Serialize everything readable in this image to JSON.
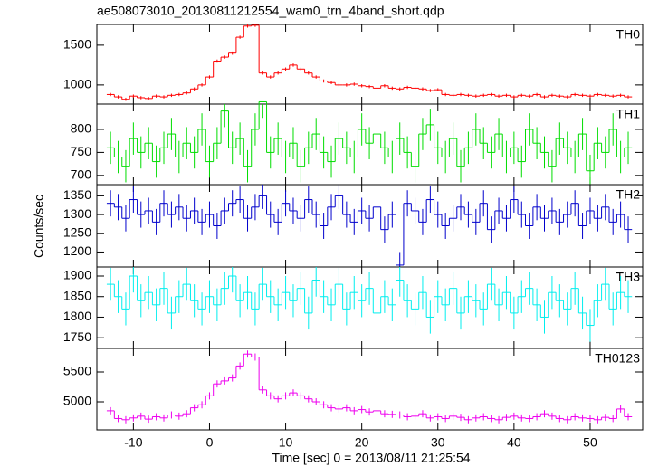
{
  "chart_data": [
    {
      "type": "step",
      "title": "ae508073010_20130811212554_wam0_trn_4band_short.qdp",
      "x": [
        -13,
        -12,
        -11,
        -10,
        -9,
        -8,
        -7,
        -6,
        -5,
        -4,
        -3,
        -2,
        -1,
        0,
        1,
        2,
        3,
        4,
        5,
        6,
        7,
        8,
        9,
        10,
        11,
        12,
        13,
        14,
        15,
        16,
        17,
        18,
        19,
        20,
        21,
        22,
        23,
        24,
        25,
        26,
        27,
        28,
        29,
        30,
        31,
        32,
        33,
        34,
        35,
        36,
        37,
        38,
        39,
        40,
        41,
        42,
        43,
        44,
        45,
        46,
        47,
        48,
        49,
        50,
        51,
        52,
        53,
        54,
        55
      ],
      "xlim": [
        -14.8,
        56.9
      ],
      "xticks": [
        -10,
        0,
        10,
        20,
        30,
        40,
        50
      ],
      "ylim": [
        760,
        1760
      ],
      "yticks": [
        1000,
        1500
      ],
      "series": [
        {
          "name": "TH0",
          "color": "#ff0000",
          "error": 20,
          "values": [
            880,
            850,
            820,
            860,
            840,
            830,
            860,
            850,
            870,
            880,
            900,
            950,
            1000,
            1100,
            1300,
            1350,
            1400,
            1600,
            1740,
            1750,
            1150,
            1100,
            1150,
            1200,
            1250,
            1200,
            1150,
            1100,
            1050,
            1030,
            1000,
            1000,
            1010,
            990,
            980,
            960,
            990,
            960,
            950,
            970,
            960,
            950,
            930,
            940,
            880,
            870,
            880,
            870,
            860,
            870,
            880,
            860,
            870,
            850,
            870,
            860,
            880,
            850,
            870,
            860,
            850,
            880,
            870,
            860,
            880,
            870,
            860,
            870,
            850
          ]
        }
      ]
    },
    {
      "type": "step",
      "x": [
        -13,
        -12,
        -11,
        -10,
        -9,
        -8,
        -7,
        -6,
        -5,
        -4,
        -3,
        -2,
        -1,
        0,
        1,
        2,
        3,
        4,
        5,
        6,
        7,
        8,
        9,
        10,
        11,
        12,
        13,
        14,
        15,
        16,
        17,
        18,
        19,
        20,
        21,
        22,
        23,
        24,
        25,
        26,
        27,
        28,
        29,
        30,
        31,
        32,
        33,
        34,
        35,
        36,
        37,
        38,
        39,
        40,
        41,
        42,
        43,
        44,
        45,
        46,
        47,
        48,
        49,
        50,
        51,
        52,
        53,
        54,
        55
      ],
      "xlim": [
        -14.8,
        56.9
      ],
      "xticks": [
        -10,
        0,
        10,
        20,
        30,
        40,
        50
      ],
      "ylim": [
        680,
        855
      ],
      "yticks": [
        700,
        750,
        800
      ],
      "series": [
        {
          "name": "TH1",
          "color": "#00dd00",
          "error": 35,
          "values": [
            760,
            740,
            720,
            780,
            750,
            770,
            730,
            760,
            790,
            740,
            770,
            750,
            800,
            730,
            770,
            840,
            760,
            780,
            720,
            800,
            860,
            750,
            780,
            740,
            770,
            720,
            760,
            790,
            750,
            730,
            780,
            760,
            740,
            800,
            770,
            790,
            760,
            740,
            780,
            750,
            720,
            790,
            810,
            760,
            740,
            780,
            720,
            760,
            800,
            770,
            750,
            790,
            740,
            760,
            730,
            800,
            770,
            750,
            720,
            780,
            760,
            740,
            790,
            710,
            770,
            750,
            800,
            740,
            760
          ]
        }
      ]
    },
    {
      "type": "step",
      "ylabel": "Counts/sec",
      "x": [
        -13,
        -12,
        -11,
        -10,
        -9,
        -8,
        -7,
        -6,
        -5,
        -4,
        -3,
        -2,
        -1,
        0,
        1,
        2,
        3,
        4,
        5,
        6,
        7,
        8,
        9,
        10,
        11,
        12,
        13,
        14,
        15,
        16,
        17,
        18,
        19,
        20,
        21,
        22,
        23,
        24,
        25,
        26,
        27,
        28,
        29,
        30,
        31,
        32,
        33,
        34,
        35,
        36,
        37,
        38,
        39,
        40,
        41,
        42,
        43,
        44,
        45,
        46,
        47,
        48,
        49,
        50,
        51,
        52,
        53,
        54,
        55
      ],
      "xlim": [
        -14.8,
        56.9
      ],
      "xticks": [
        -10,
        0,
        10,
        20,
        30,
        40,
        50
      ],
      "ylim": [
        1160,
        1380
      ],
      "yticks": [
        1200,
        1250,
        1300,
        1350
      ],
      "series": [
        {
          "name": "TH2",
          "color": "#0000cc",
          "error": 35,
          "values": [
            1330,
            1320,
            1290,
            1340,
            1300,
            1310,
            1280,
            1330,
            1300,
            1320,
            1290,
            1310,
            1280,
            1300,
            1270,
            1310,
            1330,
            1340,
            1290,
            1320,
            1350,
            1300,
            1280,
            1330,
            1310,
            1290,
            1340,
            1300,
            1270,
            1320,
            1350,
            1300,
            1280,
            1310,
            1290,
            1320,
            1260,
            1300,
            1165,
            1330,
            1310,
            1280,
            1340,
            1300,
            1270,
            1290,
            1320,
            1300,
            1280,
            1330,
            1260,
            1310,
            1290,
            1340,
            1300,
            1270,
            1320,
            1290,
            1310,
            1280,
            1300,
            1330,
            1270,
            1310,
            1290,
            1320,
            1280,
            1300,
            1260
          ]
        }
      ]
    },
    {
      "type": "step",
      "x": [
        -13,
        -12,
        -11,
        -10,
        -9,
        -8,
        -7,
        -6,
        -5,
        -4,
        -3,
        -2,
        -1,
        0,
        1,
        2,
        3,
        4,
        5,
        6,
        7,
        8,
        9,
        10,
        11,
        12,
        13,
        14,
        15,
        16,
        17,
        18,
        19,
        20,
        21,
        22,
        23,
        24,
        25,
        26,
        27,
        28,
        29,
        30,
        31,
        32,
        33,
        34,
        35,
        36,
        37,
        38,
        39,
        40,
        41,
        42,
        43,
        44,
        45,
        46,
        47,
        48,
        49,
        50,
        51,
        52,
        53,
        54,
        55
      ],
      "xlim": [
        -14.8,
        56.9
      ],
      "xticks": [
        -10,
        0,
        10,
        20,
        30,
        40,
        50
      ],
      "ylim": [
        1724,
        1922
      ],
      "yticks": [
        1750,
        1800,
        1850,
        1900
      ],
      "series": [
        {
          "name": "TH3",
          "color": "#00eeee",
          "error": 40,
          "values": [
            1880,
            1850,
            1820,
            1900,
            1840,
            1860,
            1830,
            1870,
            1810,
            1850,
            1880,
            1840,
            1820,
            1850,
            1830,
            1870,
            1900,
            1840,
            1860,
            1820,
            1880,
            1850,
            1830,
            1860,
            1840,
            1870,
            1810,
            1890,
            1850,
            1830,
            1880,
            1820,
            1860,
            1840,
            1870,
            1810,
            1850,
            1830,
            1890,
            1840,
            1820,
            1860,
            1800,
            1850,
            1830,
            1870,
            1810,
            1850,
            1840,
            1820,
            1880,
            1830,
            1860,
            1810,
            1850,
            1870,
            1830,
            1800,
            1860,
            1840,
            1820,
            1870,
            1810,
            1780,
            1840,
            1880,
            1820,
            1860,
            1850
          ]
        }
      ]
    },
    {
      "type": "step",
      "xlabel": "Time [sec] 0 = 2013/08/11 21:25:54",
      "x": [
        -13,
        -12,
        -11,
        -10,
        -9,
        -8,
        -7,
        -6,
        -5,
        -4,
        -3,
        -2,
        -1,
        0,
        1,
        2,
        3,
        4,
        5,
        6,
        7,
        8,
        9,
        10,
        11,
        12,
        13,
        14,
        15,
        16,
        17,
        18,
        19,
        20,
        21,
        22,
        23,
        24,
        25,
        26,
        27,
        28,
        29,
        30,
        31,
        32,
        33,
        34,
        35,
        36,
        37,
        38,
        39,
        40,
        41,
        42,
        43,
        44,
        45,
        46,
        47,
        48,
        49,
        50,
        51,
        52,
        53,
        54,
        55
      ],
      "xlim": [
        -14.8,
        56.9
      ],
      "xticks": [
        -10,
        0,
        10,
        20,
        30,
        40,
        50
      ],
      "ylim": [
        4530,
        5894
      ],
      "yticks": [
        5000,
        5500
      ],
      "series": [
        {
          "name": "TH0123",
          "color": "#ee00ee",
          "error": 60,
          "values": [
            4850,
            4720,
            4700,
            4730,
            4760,
            4710,
            4750,
            4730,
            4780,
            4760,
            4800,
            4900,
            4950,
            5100,
            5300,
            5350,
            5400,
            5600,
            5800,
            5750,
            5200,
            5100,
            5050,
            5100,
            5150,
            5100,
            5050,
            5000,
            4950,
            4900,
            4880,
            4900,
            4850,
            4870,
            4830,
            4850,
            4800,
            4790,
            4780,
            4750,
            4760,
            4800,
            4730,
            4750,
            4720,
            4760,
            4740,
            4700,
            4730,
            4750,
            4720,
            4700,
            4740,
            4760,
            4730,
            4720,
            4750,
            4800,
            4760,
            4720,
            4700,
            4750,
            4730,
            4720,
            4700,
            4740,
            4720,
            4880,
            4750
          ]
        }
      ]
    }
  ]
}
